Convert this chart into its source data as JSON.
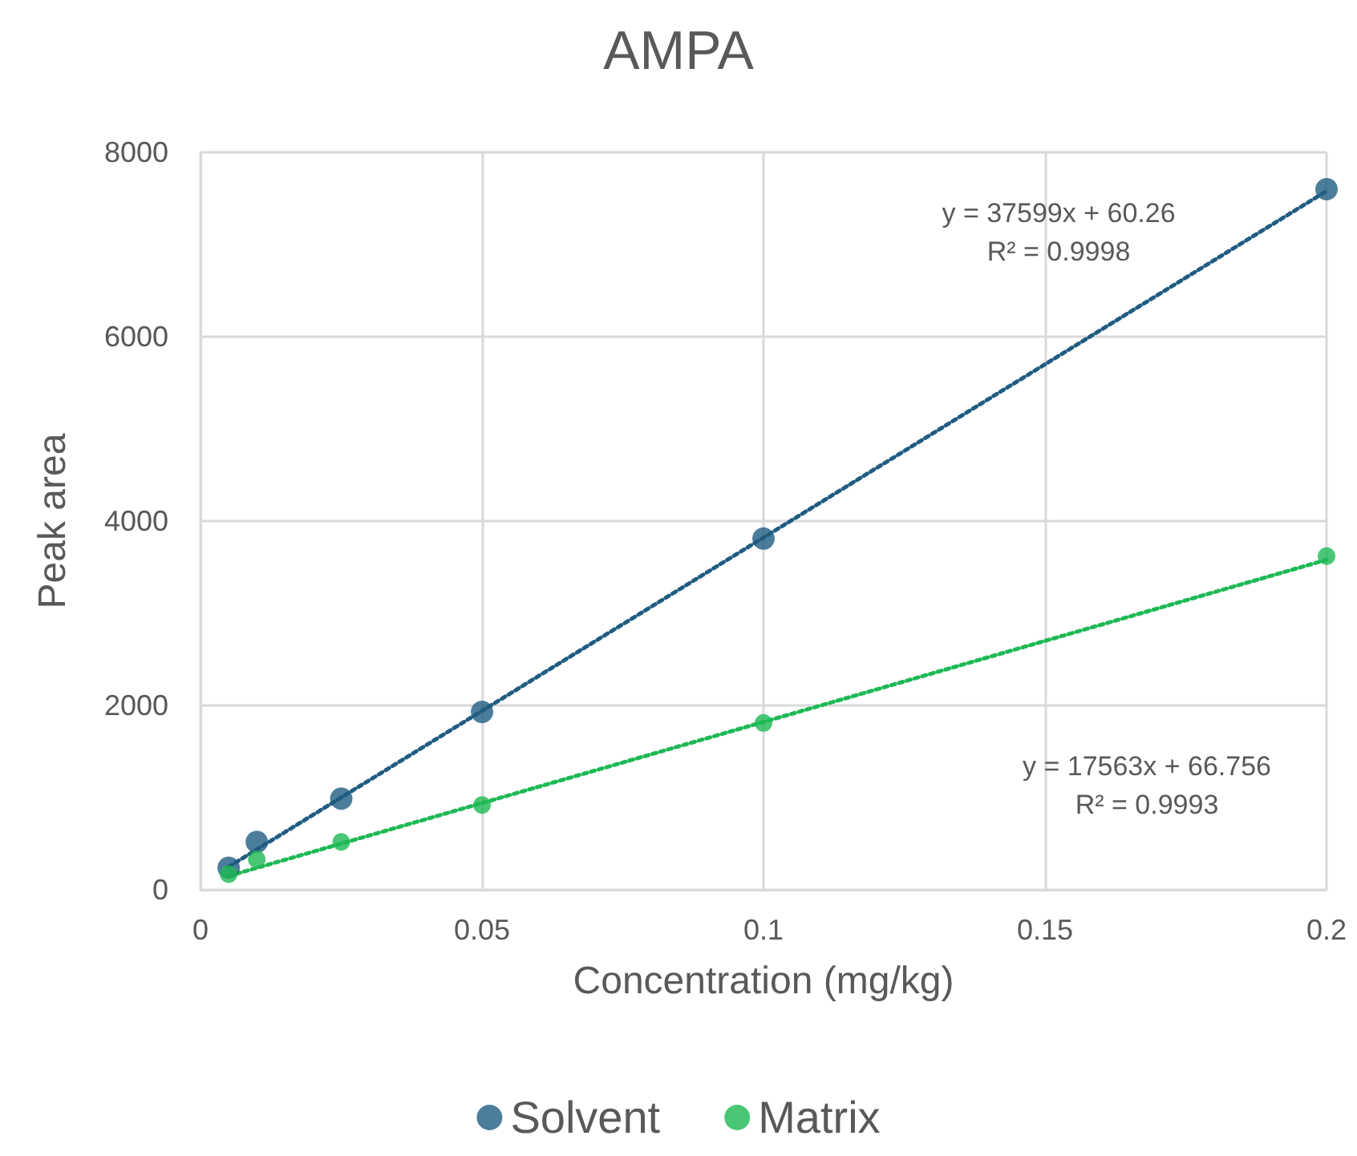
{
  "chart_data": {
    "type": "scatter",
    "title": "AMPA",
    "xlabel": "Concentration (mg/kg)",
    "ylabel": "Peak area",
    "series": [
      {
        "name": "Solvent",
        "color": "#1f5c82",
        "x": [
          0.005,
          0.01,
          0.025,
          0.05,
          0.1,
          0.2
        ],
        "values": [
          240,
          520,
          990,
          1930,
          3810,
          7600
        ]
      },
      {
        "name": "Matrix",
        "color": "#1db954",
        "x": [
          0.005,
          0.01,
          0.025,
          0.05,
          0.1,
          0.2
        ],
        "values": [
          170,
          330,
          520,
          920,
          1810,
          3620
        ]
      },
      {
        "type": "line",
        "color": "#1f5c82",
        "x": [
          0.005,
          0.2
        ],
        "values": [
          250,
          7580
        ],
        "marker": "none",
        "line_style": "dotted"
      },
      {
        "type": "line",
        "color": "#1db954",
        "x": [
          0.005,
          0.2
        ],
        "values": [
          150,
          3580
        ],
        "marker": "none",
        "line_style": "dotted"
      }
    ],
    "annotations": [
      "y = 37599x + 60.26\nR² = 0.9998",
      "y = 17563x + 66.756\nR² = 0.9993"
    ],
    "xlim": [
      0,
      0.2
    ],
    "xticks": [
      0,
      0.05,
      0.1,
      0.15,
      0.2
    ],
    "ylim": [
      0,
      8000
    ],
    "yticks": [
      0,
      2000,
      4000,
      6000,
      8000
    ],
    "grid": true,
    "legend": "bottom",
    "marker": "circle"
  }
}
